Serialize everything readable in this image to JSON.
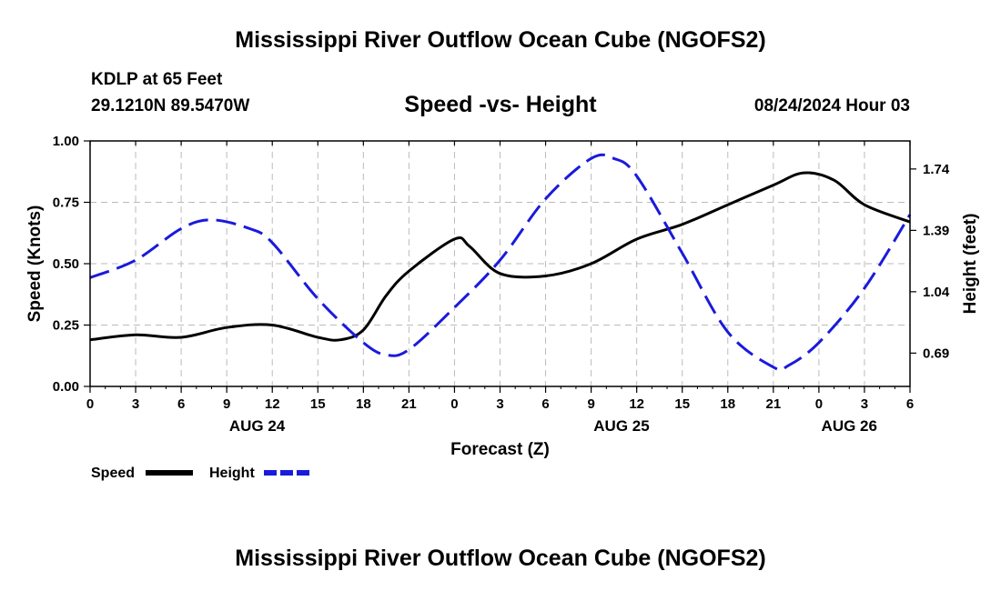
{
  "header": {
    "title": "Mississippi River Outflow Ocean Cube (NGOFS2)",
    "station": "KDLP at 65 Feet",
    "coords": "29.1210N  89.5470W",
    "chart_title": "Speed -vs- Height",
    "datetime": "08/24/2024 Hour 03"
  },
  "footer": {
    "title": "Mississippi River Outflow Ocean Cube (NGOFS2)"
  },
  "colors": {
    "speed": "#000000",
    "height": "#1a1adc",
    "grid": "#bbbbbb"
  },
  "chart_data": {
    "type": "line",
    "title": "Speed -vs- Height",
    "xlabel": "Forecast (Z)",
    "ylabel_left": "Speed (Knots)",
    "ylabel_right": "Height (feet)",
    "x_range_hours": [
      0,
      54
    ],
    "x_ticks": [
      "0",
      "3",
      "6",
      "9",
      "12",
      "15",
      "18",
      "21",
      "0",
      "3",
      "6",
      "9",
      "12",
      "15",
      "18",
      "21",
      "0",
      "3",
      "6"
    ],
    "date_labels": [
      {
        "label": "AUG 24",
        "hour": 11
      },
      {
        "label": "AUG 25",
        "hour": 35
      },
      {
        "label": "AUG 26",
        "hour": 50
      }
    ],
    "ylim_left": [
      0,
      1.0
    ],
    "yticks_left": [
      "0.00",
      "0.25",
      "0.50",
      "0.75",
      "1.00"
    ],
    "ylim_right": [
      0.5,
      1.9
    ],
    "yticks_right": [
      "0.69",
      "1.04",
      "1.39",
      "1.74"
    ],
    "grid": true,
    "legend": [
      {
        "name": "Speed",
        "style": "solid"
      },
      {
        "name": "Height",
        "style": "dashed"
      }
    ],
    "series": [
      {
        "name": "Speed",
        "axis": "left",
        "x": [
          0,
          3,
          6,
          9,
          12,
          15,
          16.5,
          18,
          19.5,
          21,
          24,
          25,
          27,
          30,
          33,
          36,
          39,
          42,
          45,
          47,
          49,
          51,
          54
        ],
        "values": [
          0.19,
          0.21,
          0.2,
          0.24,
          0.25,
          0.2,
          0.19,
          0.23,
          0.37,
          0.47,
          0.6,
          0.57,
          0.46,
          0.45,
          0.5,
          0.6,
          0.66,
          0.74,
          0.82,
          0.87,
          0.84,
          0.74,
          0.67
        ]
      },
      {
        "name": "Height",
        "axis": "right",
        "x": [
          0,
          3,
          6,
          8,
          10.5,
          12,
          15,
          18,
          19.5,
          21,
          24,
          27,
          30,
          33,
          34.5,
          36,
          39,
          42,
          45,
          46,
          48,
          51,
          54
        ],
        "values": [
          1.12,
          1.22,
          1.4,
          1.45,
          1.4,
          1.32,
          1.0,
          0.75,
          0.68,
          0.71,
          0.95,
          1.22,
          1.57,
          1.8,
          1.8,
          1.7,
          1.26,
          0.81,
          0.61,
          0.62,
          0.75,
          1.06,
          1.48
        ]
      }
    ]
  }
}
